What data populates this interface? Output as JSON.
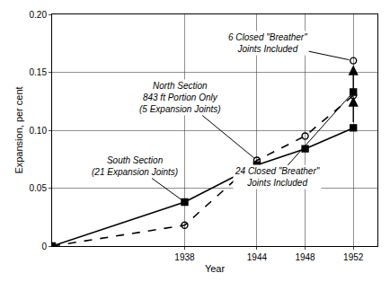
{
  "chart_data": {
    "type": "line",
    "x_label": "Year",
    "y_label": "Expansion, per cent",
    "x": [
      1927,
      1938,
      1944,
      1948,
      1952
    ],
    "series": [
      {
        "name": "South Section\n(21 Expansion Joints)",
        "color": "#000000",
        "marker": "square",
        "line_style": "solid",
        "values": [
          0,
          0.038,
          0.07,
          0.084,
          0.102
        ]
      },
      {
        "name": "North Section\n843 ft Portion Only\n(5 Expansion Joints)",
        "color": "#000000",
        "marker": "circle-open",
        "line_style": "dash",
        "values": [
          0,
          0.018,
          0.074,
          0.095,
          0.13
        ]
      },
      {
        "name": "24 Closed \"Breather\"\nJoints Included",
        "color": "#000000",
        "marker": "square",
        "line_style": "none",
        "values": [
          null,
          null,
          null,
          null,
          0.133
        ]
      },
      {
        "name": "6 Closed \"Breather\"\nJoints Included",
        "color": "#000000",
        "marker": "circle-open",
        "line_style": "none",
        "values": [
          null,
          null,
          null,
          null,
          0.16
        ]
      }
    ],
    "xlim": [
      1927,
      1954
    ],
    "xticks": [
      1938,
      1944,
      1948,
      1952
    ],
    "ylim": [
      0,
      0.2
    ],
    "yticks": [
      0,
      0.05,
      {
        "value": 0.1,
        "label": "0.10"
      },
      0.15,
      {
        "value": 0.2,
        "label": "0.20"
      }
    ],
    "grid": true
  }
}
